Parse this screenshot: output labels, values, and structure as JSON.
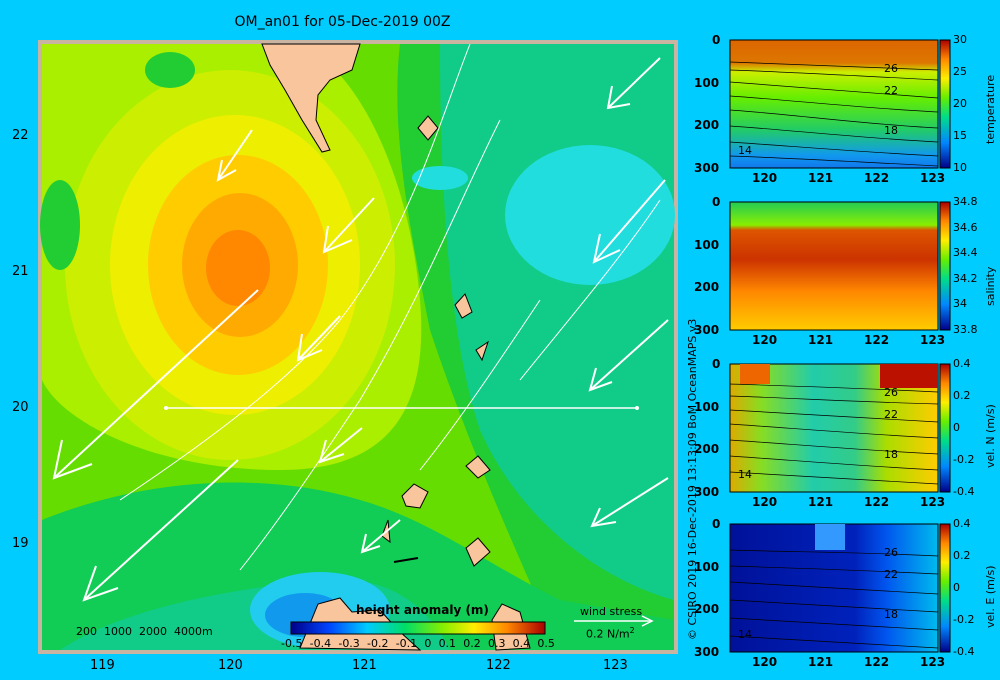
{
  "title": "OM_an01 for 05-Dec-2019 00Z",
  "map": {
    "lon_ticks": [
      "119",
      "120",
      "121",
      "122",
      "123"
    ],
    "lat_ticks": [
      "22",
      "21",
      "20",
      "19"
    ],
    "bathymetry_legend": "200  1000  2000  4000m",
    "colorbar_title": "height anomaly (m)",
    "colorbar_ticks": [
      "-0.5",
      "-0.4",
      "-0.3",
      "-0.2",
      "-0.1",
      "0",
      "0.1",
      "0.2",
      "0.3",
      "0.4",
      "0.5"
    ],
    "wind_legend_title": "wind stress",
    "wind_legend_value": "0.2 N/m",
    "wind_legend_sup": "2"
  },
  "credit": "© CSIRO 2019   16-Dec-2019 13:13:09 BoM OceanMAPS v3",
  "panels": [
    {
      "label": "temperature",
      "cbar_ticks": [
        "30",
        "25",
        "20",
        "15",
        "10"
      ],
      "contours": [
        "26",
        "22",
        "18",
        "14"
      ]
    },
    {
      "label": "salinity",
      "cbar_ticks": [
        "34.8",
        "34.6",
        "34.4",
        "34.2",
        "34",
        "33.8"
      ],
      "contours": []
    },
    {
      "label": "vel. N (m/s)",
      "cbar_ticks": [
        "0.4",
        "0.2",
        "0",
        "-0.2",
        "-0.4"
      ],
      "contours": [
        "26",
        "22",
        "18",
        "14"
      ]
    },
    {
      "label": "vel. E (m/s)",
      "cbar_ticks": [
        "0.4",
        "0.2",
        "0",
        "-0.2",
        "-0.4"
      ],
      "contours": [
        "26",
        "22",
        "18",
        "14"
      ]
    }
  ],
  "depth_ticks": [
    "0",
    "100",
    "200",
    "300"
  ],
  "section_lon_ticks": [
    "120",
    "121",
    "122",
    "123"
  ],
  "colors": {
    "background": "#00ccff",
    "land": "#f9c59d",
    "frame": "#c8b4a0"
  }
}
